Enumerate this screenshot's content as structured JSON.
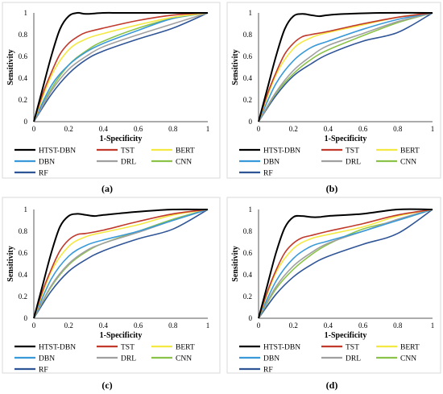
{
  "chart_data": [
    {
      "type": "line",
      "caption": "(a)",
      "xlabel": "1-Specificity",
      "ylabel": "Sensitivity",
      "xlim": [
        0,
        1
      ],
      "ylim": [
        0,
        1
      ],
      "x_ticks": [
        "0",
        "0.2",
        "0.4",
        "0.6",
        "0.8",
        "1"
      ],
      "y_ticks": [
        "0",
        "0.2",
        "0.4",
        "0.6",
        "0.8",
        "1"
      ],
      "grid": false,
      "legend_position": "bottom",
      "series": [
        {
          "name": "HTST-DBN",
          "color": "#000000",
          "x": [
            0,
            0.05,
            0.1,
            0.15,
            0.2,
            0.25,
            0.3,
            0.4,
            0.5,
            0.7,
            1.0
          ],
          "y": [
            0,
            0.3,
            0.6,
            0.85,
            0.97,
            1.0,
            0.99,
            1.0,
            1.0,
            1.0,
            1.0
          ]
        },
        {
          "name": "TST",
          "color": "#c0392b",
          "x": [
            0,
            0.05,
            0.1,
            0.15,
            0.2,
            0.25,
            0.3,
            0.4,
            0.6,
            0.8,
            1.0
          ],
          "y": [
            0,
            0.25,
            0.45,
            0.62,
            0.72,
            0.78,
            0.82,
            0.86,
            0.93,
            0.98,
            1.0
          ]
        },
        {
          "name": "BERT",
          "color": "#f4e842",
          "x": [
            0,
            0.1,
            0.2,
            0.3,
            0.4,
            0.6,
            0.8,
            1.0
          ],
          "y": [
            0,
            0.42,
            0.66,
            0.76,
            0.81,
            0.89,
            0.96,
            1.0
          ]
        },
        {
          "name": "DBN",
          "color": "#3a9ad9",
          "x": [
            0,
            0.1,
            0.2,
            0.3,
            0.4,
            0.6,
            0.8,
            1.0
          ],
          "y": [
            0,
            0.33,
            0.52,
            0.64,
            0.72,
            0.84,
            0.95,
            1.0
          ]
        },
        {
          "name": "DRL",
          "color": "#a0a0a0",
          "x": [
            0,
            0.1,
            0.2,
            0.3,
            0.4,
            0.6,
            0.8,
            1.0
          ],
          "y": [
            0,
            0.28,
            0.48,
            0.6,
            0.69,
            0.8,
            0.9,
            1.0
          ]
        },
        {
          "name": "CNN",
          "color": "#8bc34a",
          "x": [
            0,
            0.1,
            0.2,
            0.3,
            0.4,
            0.6,
            0.8,
            1.0
          ],
          "y": [
            0,
            0.3,
            0.52,
            0.65,
            0.74,
            0.86,
            0.95,
            1.0
          ]
        },
        {
          "name": "RF",
          "color": "#2f5597",
          "x": [
            0,
            0.1,
            0.2,
            0.3,
            0.4,
            0.6,
            0.8,
            1.0
          ],
          "y": [
            0,
            0.25,
            0.44,
            0.57,
            0.65,
            0.76,
            0.86,
            1.0
          ]
        }
      ]
    },
    {
      "type": "line",
      "caption": "(b)",
      "xlabel": "1-Specificity",
      "ylabel": "Sensitivity",
      "xlim": [
        0,
        1
      ],
      "ylim": [
        0,
        1
      ],
      "x_ticks": [
        "0",
        "0.2",
        "0.4",
        "0.6",
        "0.8",
        "1"
      ],
      "y_ticks": [
        "0",
        "0.2",
        "0.4",
        "0.6",
        "0.8",
        "1"
      ],
      "grid": false,
      "legend_position": "bottom",
      "series": [
        {
          "name": "HTST-DBN",
          "color": "#000000",
          "x": [
            0,
            0.05,
            0.1,
            0.15,
            0.2,
            0.25,
            0.3,
            0.35,
            0.4,
            0.5,
            0.7,
            1.0
          ],
          "y": [
            0,
            0.3,
            0.6,
            0.85,
            0.97,
            0.99,
            0.98,
            0.97,
            0.98,
            0.99,
            1.0,
            1.0
          ]
        },
        {
          "name": "TST",
          "color": "#c0392b",
          "x": [
            0,
            0.05,
            0.1,
            0.15,
            0.2,
            0.25,
            0.3,
            0.4,
            0.6,
            0.8,
            1.0
          ],
          "y": [
            0,
            0.25,
            0.45,
            0.62,
            0.72,
            0.78,
            0.8,
            0.83,
            0.9,
            0.96,
            1.0
          ]
        },
        {
          "name": "BERT",
          "color": "#f4e842",
          "x": [
            0,
            0.1,
            0.2,
            0.3,
            0.4,
            0.6,
            0.8,
            1.0
          ],
          "y": [
            0,
            0.43,
            0.67,
            0.77,
            0.82,
            0.89,
            0.96,
            1.0
          ]
        },
        {
          "name": "DBN",
          "color": "#3a9ad9",
          "x": [
            0,
            0.1,
            0.2,
            0.3,
            0.4,
            0.6,
            0.8,
            1.0
          ],
          "y": [
            0,
            0.35,
            0.56,
            0.68,
            0.74,
            0.85,
            0.94,
            1.0
          ]
        },
        {
          "name": "DRL",
          "color": "#a0a0a0",
          "x": [
            0,
            0.1,
            0.2,
            0.3,
            0.4,
            0.6,
            0.8,
            1.0
          ],
          "y": [
            0,
            0.27,
            0.47,
            0.6,
            0.7,
            0.81,
            0.92,
            1.0
          ]
        },
        {
          "name": "CNN",
          "color": "#8bc34a",
          "x": [
            0,
            0.1,
            0.2,
            0.3,
            0.4,
            0.6,
            0.8,
            1.0
          ],
          "y": [
            0,
            0.26,
            0.44,
            0.57,
            0.66,
            0.79,
            0.91,
            1.0
          ]
        },
        {
          "name": "RF",
          "color": "#2f5597",
          "x": [
            0,
            0.1,
            0.2,
            0.3,
            0.4,
            0.6,
            0.8,
            1.0
          ],
          "y": [
            0,
            0.24,
            0.42,
            0.53,
            0.62,
            0.74,
            0.82,
            1.0
          ]
        }
      ]
    },
    {
      "type": "line",
      "caption": "(c)",
      "xlabel": "1-Specificity",
      "ylabel": "Sensitivity",
      "xlim": [
        0,
        1
      ],
      "ylim": [
        0,
        1
      ],
      "x_ticks": [
        "0",
        "0.2",
        "0.4",
        "0.6",
        "0.8",
        "1"
      ],
      "y_ticks": [
        "0",
        "0.2",
        "0.4",
        "0.6",
        "0.8",
        "1"
      ],
      "grid": false,
      "legend_position": "bottom",
      "series": [
        {
          "name": "HTST-DBN",
          "color": "#000000",
          "x": [
            0,
            0.05,
            0.1,
            0.15,
            0.2,
            0.25,
            0.3,
            0.35,
            0.4,
            0.6,
            0.8,
            1.0
          ],
          "y": [
            0,
            0.3,
            0.6,
            0.84,
            0.94,
            0.96,
            0.95,
            0.94,
            0.95,
            0.98,
            1.0,
            1.0
          ]
        },
        {
          "name": "TST",
          "color": "#c0392b",
          "x": [
            0,
            0.05,
            0.1,
            0.15,
            0.2,
            0.25,
            0.3,
            0.4,
            0.6,
            0.8,
            1.0
          ],
          "y": [
            0,
            0.25,
            0.45,
            0.62,
            0.72,
            0.77,
            0.78,
            0.81,
            0.89,
            0.96,
            1.0
          ]
        },
        {
          "name": "BERT",
          "color": "#f4e842",
          "x": [
            0,
            0.1,
            0.2,
            0.3,
            0.4,
            0.6,
            0.8,
            1.0
          ],
          "y": [
            0,
            0.43,
            0.66,
            0.75,
            0.79,
            0.86,
            0.95,
            1.0
          ]
        },
        {
          "name": "DBN",
          "color": "#3a9ad9",
          "x": [
            0,
            0.1,
            0.2,
            0.3,
            0.4,
            0.6,
            0.8,
            1.0
          ],
          "y": [
            0,
            0.36,
            0.57,
            0.67,
            0.72,
            0.8,
            0.9,
            1.0
          ]
        },
        {
          "name": "DRL",
          "color": "#a0a0a0",
          "x": [
            0,
            0.1,
            0.2,
            0.3,
            0.4,
            0.6,
            0.8,
            1.0
          ],
          "y": [
            0,
            0.3,
            0.5,
            0.62,
            0.69,
            0.79,
            0.9,
            1.0
          ]
        },
        {
          "name": "CNN",
          "color": "#8bc34a",
          "x": [
            0,
            0.1,
            0.2,
            0.3,
            0.4,
            0.6,
            0.8,
            1.0
          ],
          "y": [
            0,
            0.29,
            0.49,
            0.61,
            0.69,
            0.8,
            0.91,
            1.0
          ]
        },
        {
          "name": "RF",
          "color": "#2f5597",
          "x": [
            0,
            0.1,
            0.2,
            0.3,
            0.4,
            0.6,
            0.8,
            1.0
          ],
          "y": [
            0,
            0.25,
            0.43,
            0.54,
            0.62,
            0.73,
            0.82,
            1.0
          ]
        }
      ]
    },
    {
      "type": "line",
      "caption": "(d)",
      "xlabel": "1-Specificity",
      "ylabel": "Sensitivity",
      "xlim": [
        0,
        1
      ],
      "ylim": [
        0,
        1
      ],
      "x_ticks": [
        "0",
        "0.2",
        "0.4",
        "0.6",
        "0.8",
        "1"
      ],
      "y_ticks": [
        "0",
        "0.2",
        "0.4",
        "0.6",
        "0.8",
        "1"
      ],
      "grid": false,
      "legend_position": "bottom",
      "series": [
        {
          "name": "HTST-DBN",
          "color": "#000000",
          "x": [
            0,
            0.05,
            0.1,
            0.15,
            0.2,
            0.25,
            0.3,
            0.35,
            0.4,
            0.6,
            0.8,
            1.0
          ],
          "y": [
            0,
            0.3,
            0.6,
            0.83,
            0.93,
            0.94,
            0.93,
            0.93,
            0.94,
            0.96,
            1.0,
            1.0
          ]
        },
        {
          "name": "TST",
          "color": "#c0392b",
          "x": [
            0,
            0.05,
            0.1,
            0.15,
            0.2,
            0.25,
            0.3,
            0.4,
            0.6,
            0.8,
            1.0
          ],
          "y": [
            0,
            0.24,
            0.44,
            0.6,
            0.69,
            0.74,
            0.76,
            0.8,
            0.87,
            0.95,
            1.0
          ]
        },
        {
          "name": "BERT",
          "color": "#f4e842",
          "x": [
            0,
            0.1,
            0.2,
            0.3,
            0.4,
            0.6,
            0.8,
            1.0
          ],
          "y": [
            0,
            0.42,
            0.64,
            0.73,
            0.77,
            0.84,
            0.94,
            1.0
          ]
        },
        {
          "name": "DBN",
          "color": "#3a9ad9",
          "x": [
            0,
            0.1,
            0.2,
            0.3,
            0.4,
            0.6,
            0.8,
            1.0
          ],
          "y": [
            0,
            0.34,
            0.55,
            0.66,
            0.71,
            0.8,
            0.9,
            1.0
          ]
        },
        {
          "name": "DRL",
          "color": "#a0a0a0",
          "x": [
            0,
            0.1,
            0.2,
            0.3,
            0.4,
            0.6,
            0.8,
            1.0
          ],
          "y": [
            0,
            0.29,
            0.48,
            0.6,
            0.69,
            0.8,
            0.91,
            1.0
          ]
        },
        {
          "name": "CNN",
          "color": "#8bc34a",
          "x": [
            0,
            0.1,
            0.2,
            0.3,
            0.4,
            0.6,
            0.8,
            1.0
          ],
          "y": [
            0,
            0.27,
            0.45,
            0.58,
            0.68,
            0.82,
            0.9,
            1.0
          ]
        },
        {
          "name": "RF",
          "color": "#2f5597",
          "x": [
            0,
            0.1,
            0.2,
            0.3,
            0.4,
            0.6,
            0.8,
            1.0
          ],
          "y": [
            0,
            0.22,
            0.38,
            0.49,
            0.57,
            0.68,
            0.78,
            1.0
          ]
        }
      ]
    }
  ]
}
